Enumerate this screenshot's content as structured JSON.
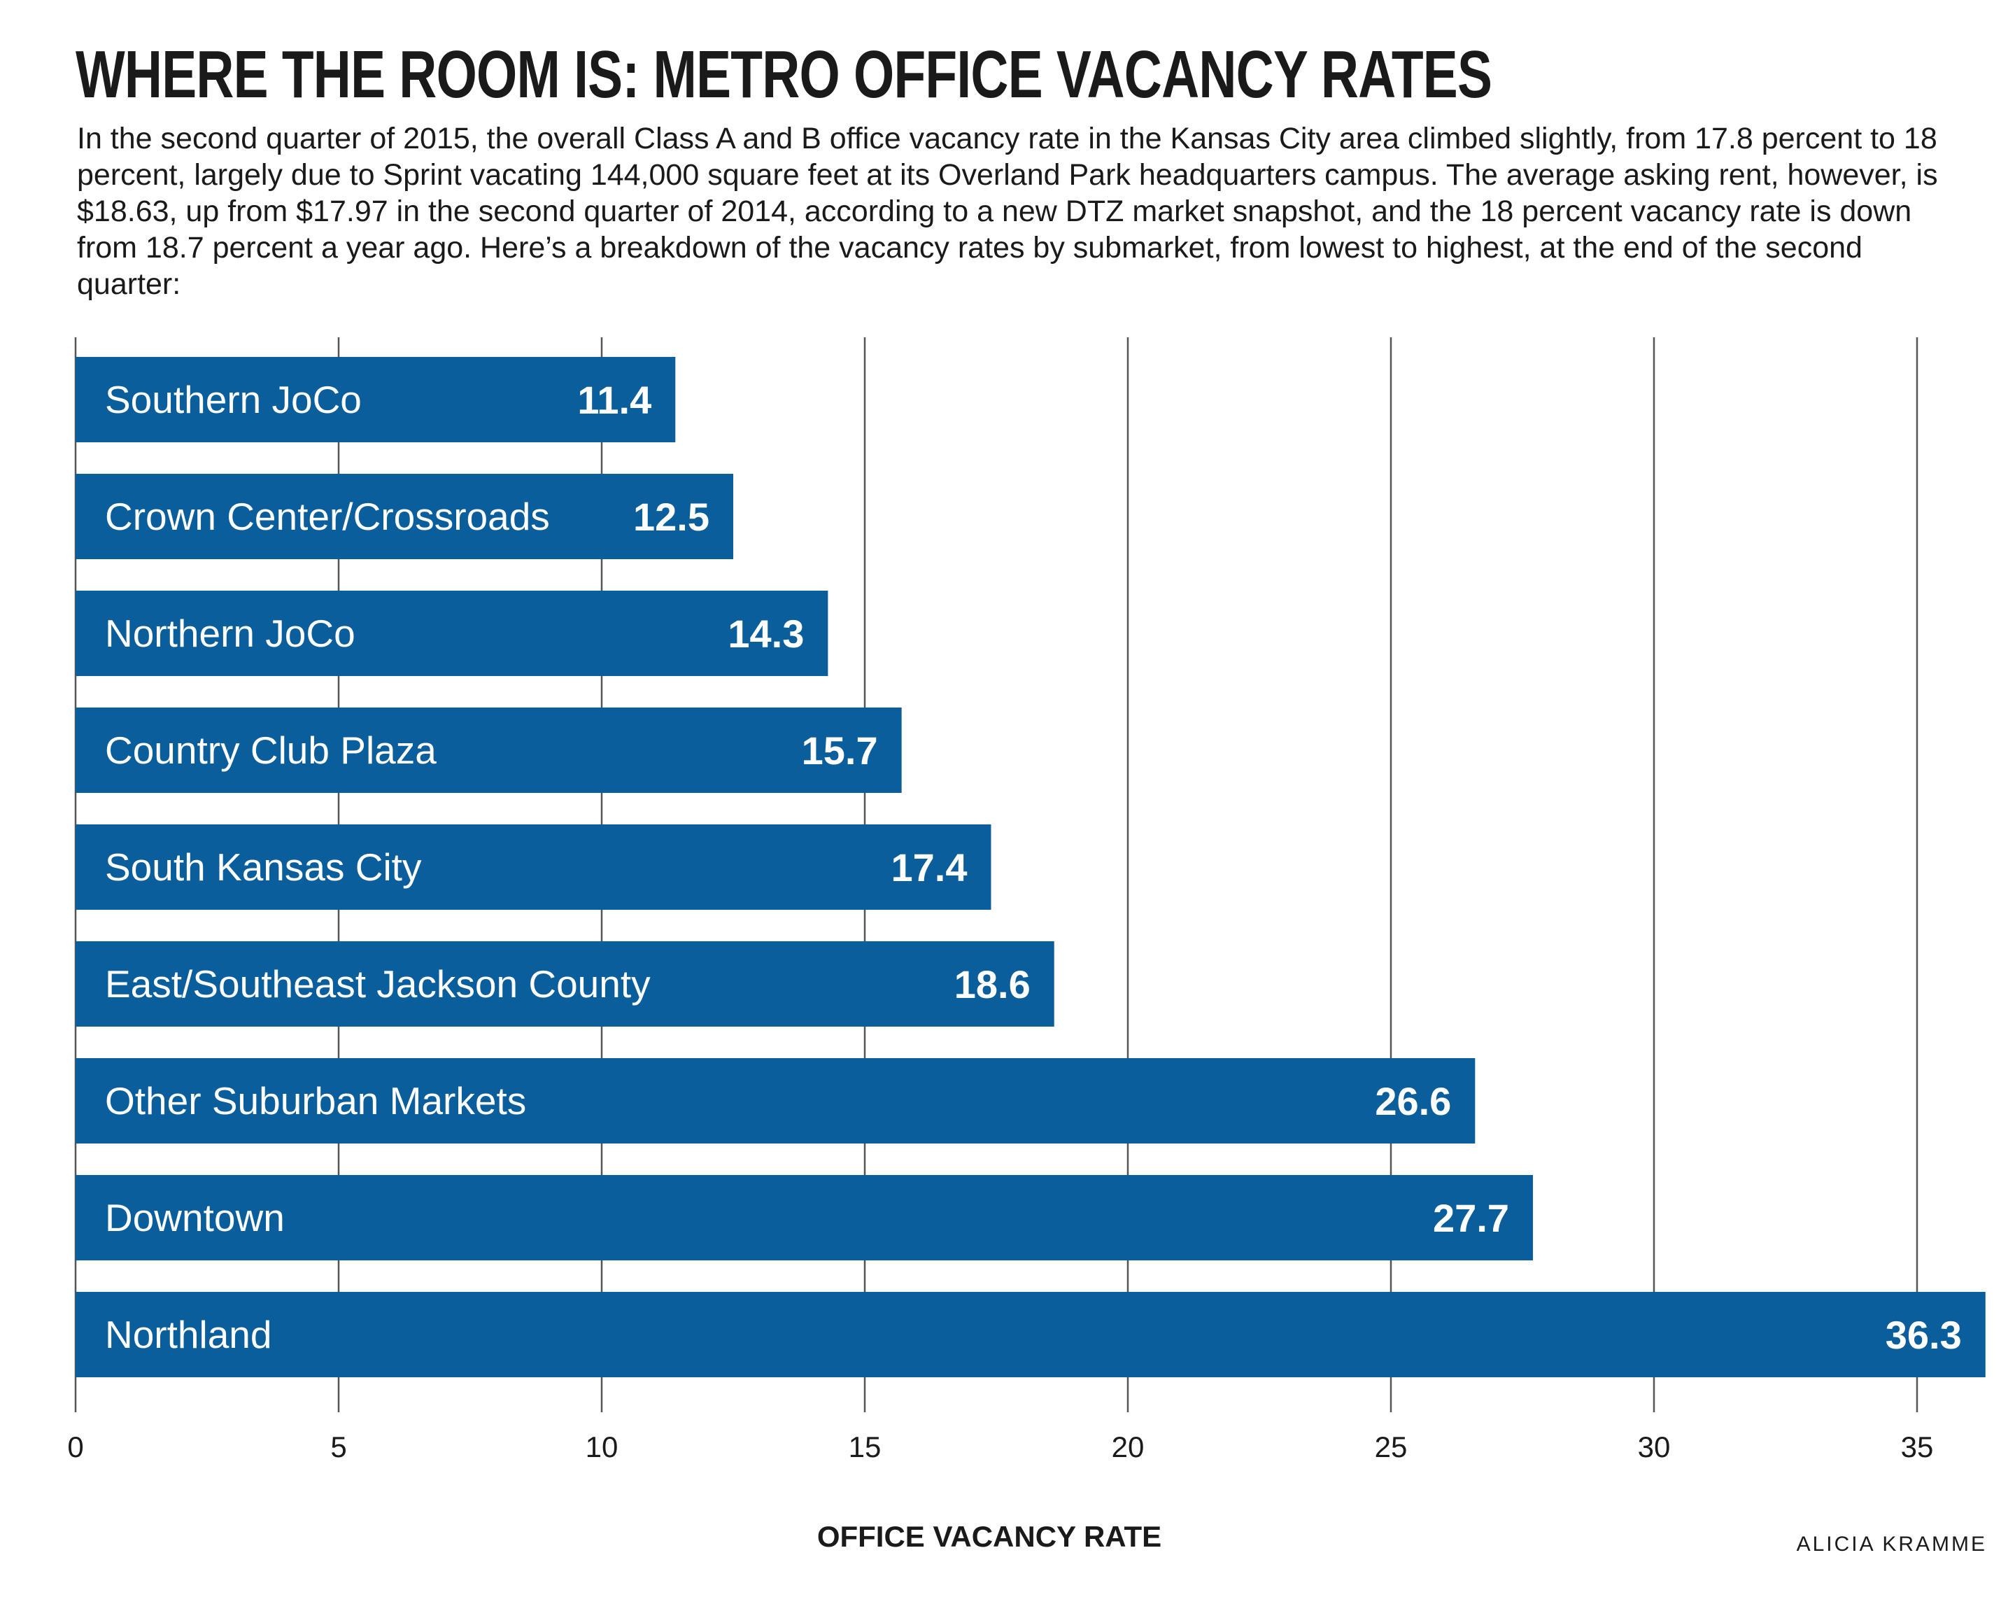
{
  "title": "WHERE THE ROOM IS: METRO OFFICE VACANCY RATES",
  "subtitle": "In the second quarter of 2015, the overall Class A and B office vacancy rate in the Kansas City area climbed slightly, from 17.8 percent to 18 percent, largely due to Sprint vacating 144,000 square feet at its Overland Park headquarters campus. The average asking rent, however, is $18.63, up from $17.97 in the second quarter of 2014, according to a new DTZ market snapshot, and the 18 percent vacancy rate is down from 18.7 percent a year ago. Here’s a breakdown of the vacancy rates by submarket, from lowest to highest, at the end of the second quarter:",
  "credit": "ALICIA KRAMME",
  "colors": {
    "bar": "#0a5e9c",
    "grid": "#555555",
    "text": "#1a1a1a"
  },
  "chart_data": {
    "type": "bar",
    "orientation": "horizontal",
    "categories": [
      "Southern JoCo",
      "Crown Center/Crossroads",
      "Northern JoCo",
      "Country Club Plaza",
      "South Kansas City",
      "East/Southeast Jackson County",
      "Other Suburban Markets",
      "Downtown",
      "Northland"
    ],
    "values": [
      11.4,
      12.5,
      14.3,
      15.7,
      17.4,
      18.6,
      26.6,
      27.7,
      36.3
    ],
    "value_labels": [
      "11.4",
      "12.5",
      "14.3",
      "15.7",
      "17.4",
      "18.6",
      "26.6",
      "27.7",
      "36.3"
    ],
    "xlabel": "OFFICE VACANCY RATE",
    "ylabel": "",
    "xlim": [
      0,
      36.3
    ],
    "xticks": [
      0,
      5,
      10,
      15,
      20,
      25,
      30,
      35
    ],
    "xtick_labels": [
      "0",
      "5",
      "10",
      "15",
      "20",
      "25",
      "30",
      "35"
    ],
    "grid": true,
    "legend": "none"
  }
}
